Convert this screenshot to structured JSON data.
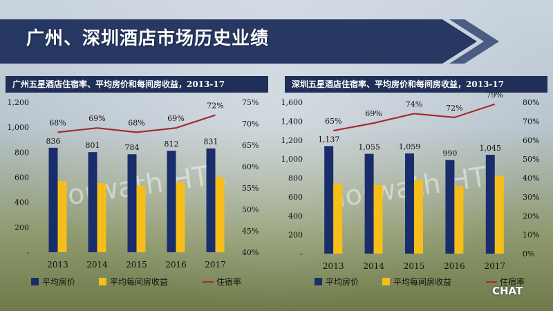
{
  "page": {
    "title": "广州、深圳酒店市场历史业绩"
  },
  "watermark": {
    "chart_text": "Horwath HTL",
    "corner_logo": "CHAT"
  },
  "colors": {
    "navy": "#1a2d6b",
    "gold": "#f5be1a",
    "red": "#a8292c",
    "header_bg": "#1f2f57"
  },
  "chart_data": [
    {
      "id": "guangzhou",
      "type": "bar+line",
      "title": "广州五星酒店住宿率、平均房价和每间房收益，2013-17",
      "categories": [
        "2013",
        "2014",
        "2015",
        "2016",
        "2017"
      ],
      "series": [
        {
          "name": "平均房价",
          "kind": "bar",
          "axis": "left",
          "values": [
            836,
            801,
            784,
            812,
            831
          ],
          "labels": [
            "836",
            "801",
            "784",
            "812",
            "831"
          ]
        },
        {
          "name": "平均每间房收益",
          "kind": "bar",
          "axis": "left",
          "values": [
            570,
            552,
            533,
            560,
            600
          ]
        },
        {
          "name": "住宿率",
          "kind": "line",
          "axis": "right",
          "values": [
            68,
            69,
            68,
            69,
            72
          ],
          "labels": [
            "68%",
            "69%",
            "68%",
            "69%",
            "72%"
          ]
        }
      ],
      "left_axis": {
        "min": 0,
        "max": 1200,
        "ticks": [
          "-",
          "200",
          "400",
          "600",
          "800",
          "1,000",
          "1,200"
        ]
      },
      "right_axis": {
        "min": 40,
        "max": 75,
        "ticks": [
          "40%",
          "45%",
          "50%",
          "55%",
          "60%",
          "65%",
          "70%",
          "75%"
        ]
      },
      "legend": [
        "平均房价",
        "平均每间房收益",
        "住宿率"
      ],
      "legend_position": "bottom"
    },
    {
      "id": "shenzhen",
      "type": "bar+line",
      "title": "深圳五星酒店住宿率、平均房价和每间房收益，2013-17",
      "categories": [
        "2013",
        "2014",
        "2015",
        "2016",
        "2017"
      ],
      "series": [
        {
          "name": "平均房价",
          "kind": "bar",
          "axis": "left",
          "values": [
            1137,
            1055,
            1059,
            990,
            1045
          ],
          "labels": [
            "1,137",
            "1,055",
            "1,059",
            "990",
            "1,045"
          ]
        },
        {
          "name": "平均每间房收益",
          "kind": "bar",
          "axis": "left",
          "values": [
            740,
            725,
            780,
            715,
            825
          ]
        },
        {
          "name": "住宿率",
          "kind": "line",
          "axis": "right",
          "values": [
            65,
            69,
            74,
            72,
            79
          ],
          "labels": [
            "65%",
            "69%",
            "74%",
            "72%",
            "79%"
          ]
        }
      ],
      "left_axis": {
        "min": 0,
        "max": 1600,
        "ticks": [
          "-",
          "200",
          "400",
          "600",
          "800",
          "1,000",
          "1,200",
          "1,400",
          "1,600"
        ]
      },
      "right_axis": {
        "min": 0,
        "max": 80,
        "ticks": [
          "0%",
          "10%",
          "20%",
          "30%",
          "40%",
          "50%",
          "60%",
          "70%",
          "80%"
        ]
      },
      "legend": [
        "平均房价",
        "平均每间房收益",
        "住宿率"
      ],
      "legend_position": "bottom"
    }
  ]
}
